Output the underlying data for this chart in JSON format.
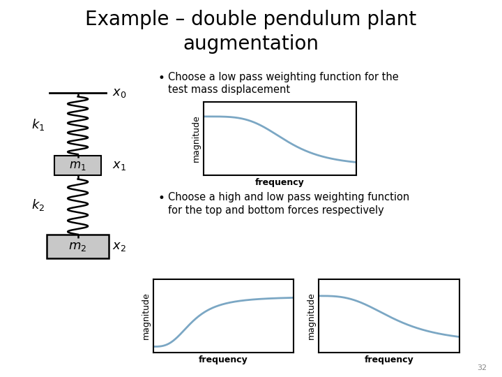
{
  "title_line1": "Example – double pendulum plant",
  "title_line2": "augmentation",
  "title_fontsize": 20,
  "title_color": "#000000",
  "background_color": "#ffffff",
  "bullet1_line1": "Choose a low pass weighting function for the",
  "bullet1_line2": "test mass displacement",
  "bullet2_line1": "Choose a high and low pass weighting function",
  "bullet2_line2": "for the top and bottom forces respectively",
  "bullet_fontsize": 10.5,
  "xlabel_label": "frequency",
  "ylabel_label": "magnitude",
  "curve_color": "#7ba7c4",
  "curve_lw": 2.0,
  "page_number": "32",
  "spring_color": "#000000",
  "box_facecolor": "#c8c8c8",
  "box_edgecolor": "#000000",
  "label_color": "#000000"
}
